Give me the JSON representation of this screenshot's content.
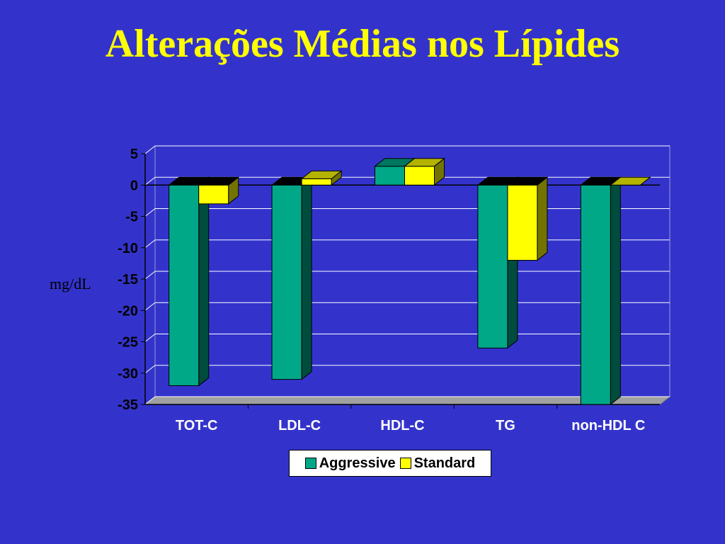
{
  "slide": {
    "title": "Alterações Médias nos Lípides"
  },
  "chart_data": {
    "type": "bar",
    "title": "",
    "ylabel": "mg/dL",
    "xlabel": "",
    "ylim": [
      -35,
      5
    ],
    "yticks": [
      "5",
      "0",
      "-5",
      "-10",
      "-15",
      "-20",
      "-25",
      "-30",
      "-35"
    ],
    "categories": [
      "TOT-C",
      "LDL-C",
      "HDL-C",
      "TG",
      "non-HDL C"
    ],
    "series": [
      {
        "name": "Aggressive",
        "color": "#00A888",
        "values": [
          -32,
          -31,
          3,
          -26,
          -35
        ]
      },
      {
        "name": "Standard",
        "color": "#FFFF00",
        "values": [
          -3,
          1,
          3,
          -12,
          0
        ]
      }
    ],
    "grid": true,
    "legend_position": "bottom"
  }
}
